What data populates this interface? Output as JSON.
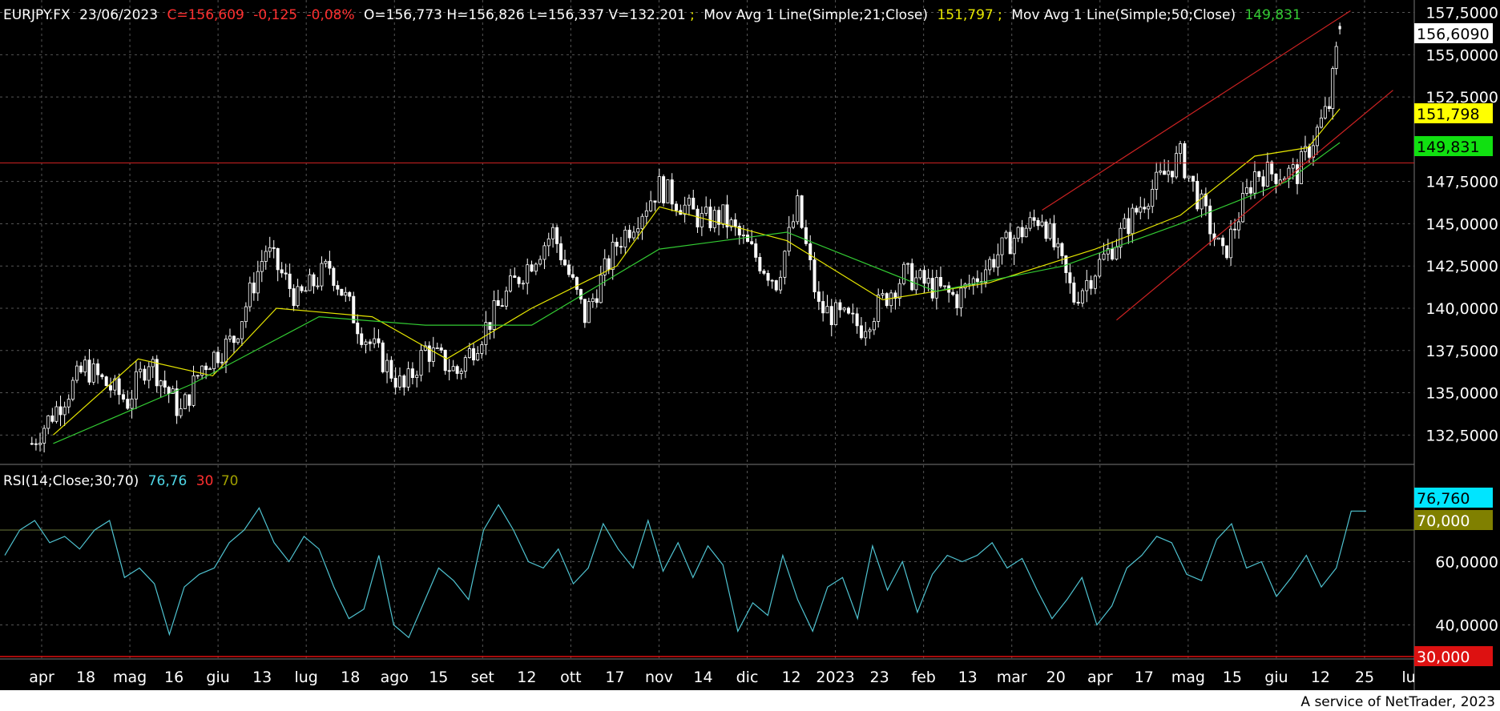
{
  "header": {
    "symbol": "EURJPY.FX",
    "date": "23/06/2023",
    "close": "C=156,609",
    "change": "-0,125",
    "change_pct": "-0,08%",
    "ohlv": "O=156,773 H=156,826 L=156,337 V=132.201",
    "sep": ";",
    "ma21_label": "Mov Avg 1 Line(Simple;21;Close)",
    "ma21_value": "151,797",
    "ma50_label": "Mov Avg 1 Line(Simple;50;Close)",
    "ma50_value": "149,831"
  },
  "rsi_header": {
    "label": "RSI(14;Close;30;70)",
    "value": "76,76",
    "low": "30",
    "high": "70"
  },
  "price_axis": {
    "ticks": [
      "157,5000",
      "155,0000",
      "152,5000",
      "147,5000",
      "145,0000",
      "142,5000",
      "140,0000",
      "137,5000",
      "135,0000",
      "132,5000"
    ],
    "last_price_box": "156,6090",
    "ma21_box": "151,798",
    "ma50_box": "149,831"
  },
  "rsi_axis": {
    "ticks": [
      "60,0000",
      "40,0000"
    ],
    "rsi_box": "76,760",
    "level70_box": "70,000",
    "level30_box": "30,000"
  },
  "time_axis": {
    "labels": [
      "apr",
      "18",
      "mag",
      "16",
      "giu",
      "13",
      "lug",
      "18",
      "ago",
      "15",
      "set",
      "12",
      "ott",
      "17",
      "nov",
      "14",
      "dic",
      "12",
      "2023",
      "23",
      "feb",
      "13",
      "mar",
      "20",
      "apr",
      "17",
      "mag",
      "15",
      "giu",
      "12",
      "25",
      "lu"
    ]
  },
  "footer": {
    "credit": "A service of NetTrader, 2023"
  },
  "colors": {
    "background": "#000000",
    "candles": "#ffffff",
    "ma21": "#e6e600",
    "ma50": "#33cc33",
    "trendline": "#cc2222",
    "rsi": "#4fc3d1",
    "rsi_box": "#00e5ff",
    "level70_box": "#808000",
    "level30_box": "#dd1111",
    "grid": "#555555"
  },
  "chart_data": [
    {
      "type": "candlestick",
      "title": "EURJPY.FX",
      "series": [
        {
          "name": "EURJPY.FX",
          "values": [
            [
              2022.25,
              132.0
            ],
            [
              2022.3,
              136.5
            ],
            [
              2022.34,
              134.5
            ],
            [
              2022.36,
              137.0
            ],
            [
              2022.39,
              133.8
            ],
            [
              2022.41,
              136.6
            ],
            [
              2022.44,
              138.2
            ],
            [
              2022.47,
              143.5
            ],
            [
              2022.5,
              140.5
            ],
            [
              2022.53,
              142.5
            ],
            [
              2022.56,
              138.6
            ],
            [
              2022.6,
              135.2
            ],
            [
              2022.62,
              137.6
            ],
            [
              2022.65,
              136.2
            ],
            [
              2022.7,
              141.2
            ],
            [
              2022.74,
              144.5
            ],
            [
              2022.77,
              139.5
            ],
            [
              2022.8,
              143.8
            ],
            [
              2022.84,
              147.2
            ],
            [
              2022.88,
              145.2
            ],
            [
              2022.9,
              145.4
            ],
            [
              2022.95,
              141.6
            ],
            [
              2022.97,
              146.0
            ],
            [
              2022.99,
              140.0
            ],
            [
              2023.03,
              138.9
            ],
            [
              2023.07,
              142.0
            ],
            [
              2023.12,
              140.6
            ],
            [
              2023.17,
              144.0
            ],
            [
              2023.2,
              145.5
            ],
            [
              2023.23,
              140.6
            ],
            [
              2023.27,
              144.0
            ],
            [
              2023.3,
              146.8
            ],
            [
              2023.33,
              149.0
            ],
            [
              2023.37,
              143.0
            ],
            [
              2023.4,
              148.0
            ],
            [
              2023.44,
              148.0
            ],
            [
              2023.47,
              152.0
            ],
            [
              2023.48,
              156.6
            ]
          ]
        },
        {
          "name": "Mov Avg 1 Line(Simple;21;Close)",
          "values": [
            [
              2022.27,
              132.5
            ],
            [
              2022.35,
              137.0
            ],
            [
              2022.42,
              136.0
            ],
            [
              2022.48,
              140.0
            ],
            [
              2022.57,
              139.5
            ],
            [
              2022.64,
              137.0
            ],
            [
              2022.72,
              140.0
            ],
            [
              2022.8,
              142.5
            ],
            [
              2022.84,
              146.0
            ],
            [
              2022.9,
              145.0
            ],
            [
              2022.96,
              144.0
            ],
            [
              2023.05,
              140.5
            ],
            [
              2023.15,
              141.5
            ],
            [
              2023.25,
              143.5
            ],
            [
              2023.33,
              145.5
            ],
            [
              2023.4,
              149.0
            ],
            [
              2023.45,
              149.5
            ],
            [
              2023.48,
              151.8
            ]
          ]
        },
        {
          "name": "Mov Avg 1 Line(Simple;50;Close)",
          "values": [
            [
              2022.27,
              132.0
            ],
            [
              2022.4,
              135.5
            ],
            [
              2022.52,
              139.5
            ],
            [
              2022.62,
              139.0
            ],
            [
              2022.72,
              139.0
            ],
            [
              2022.84,
              143.5
            ],
            [
              2022.96,
              144.5
            ],
            [
              2023.1,
              141.0
            ],
            [
              2023.22,
              142.5
            ],
            [
              2023.33,
              145.0
            ],
            [
              2023.43,
              147.5
            ],
            [
              2023.48,
              149.8
            ]
          ]
        }
      ],
      "x_labels": [
        "apr",
        "18",
        "mag",
        "16",
        "giu",
        "13",
        "lug",
        "18",
        "ago",
        "15",
        "set",
        "12",
        "ott",
        "17",
        "nov",
        "14",
        "dic",
        "12",
        "2023",
        "23",
        "feb",
        "13",
        "mar",
        "20",
        "apr",
        "17",
        "mag",
        "15",
        "giu",
        "12",
        "25",
        "lu"
      ],
      "ylim": [
        131.0,
        158.0
      ],
      "y_ticks": [
        132.5,
        135.0,
        137.5,
        140.0,
        142.5,
        145.0,
        147.5,
        152.5,
        155.0,
        157.5
      ],
      "horizontal_line": 148.6,
      "trend_channel": {
        "upper": [
          [
            2023.2,
            145.8
          ],
          [
            2023.49,
            157.6
          ]
        ],
        "lower": [
          [
            2023.27,
            139.3
          ],
          [
            2023.53,
            152.9
          ]
        ]
      },
      "grid": true
    },
    {
      "type": "line",
      "title": "RSI(14;Close;30;70)",
      "series": [
        {
          "name": "RSI(14;Close;30;70)",
          "values": [
            62,
            70,
            73,
            66,
            68,
            64,
            70,
            73,
            55,
            58,
            53,
            37,
            52,
            56,
            58,
            66,
            70,
            77,
            66,
            60,
            68,
            64,
            52,
            42,
            45,
            62,
            40,
            36,
            47,
            58,
            54,
            48,
            70,
            78,
            70,
            60,
            58,
            64,
            53,
            58,
            72,
            64,
            58,
            73,
            57,
            66,
            55,
            65,
            59,
            38,
            47,
            43,
            62,
            48,
            38,
            52,
            55,
            42,
            65,
            51,
            60,
            44,
            56,
            62,
            60,
            62,
            66,
            58,
            61,
            51,
            42,
            48,
            55,
            40,
            46,
            58,
            62,
            68,
            66,
            56,
            54,
            67,
            72,
            58,
            60,
            49,
            55,
            62,
            52,
            58,
            76,
            76
          ]
        }
      ],
      "ylim": [
        30,
        90
      ],
      "y_ticks": [
        40,
        60
      ],
      "levels": [
        30,
        70
      ],
      "grid": true
    }
  ]
}
